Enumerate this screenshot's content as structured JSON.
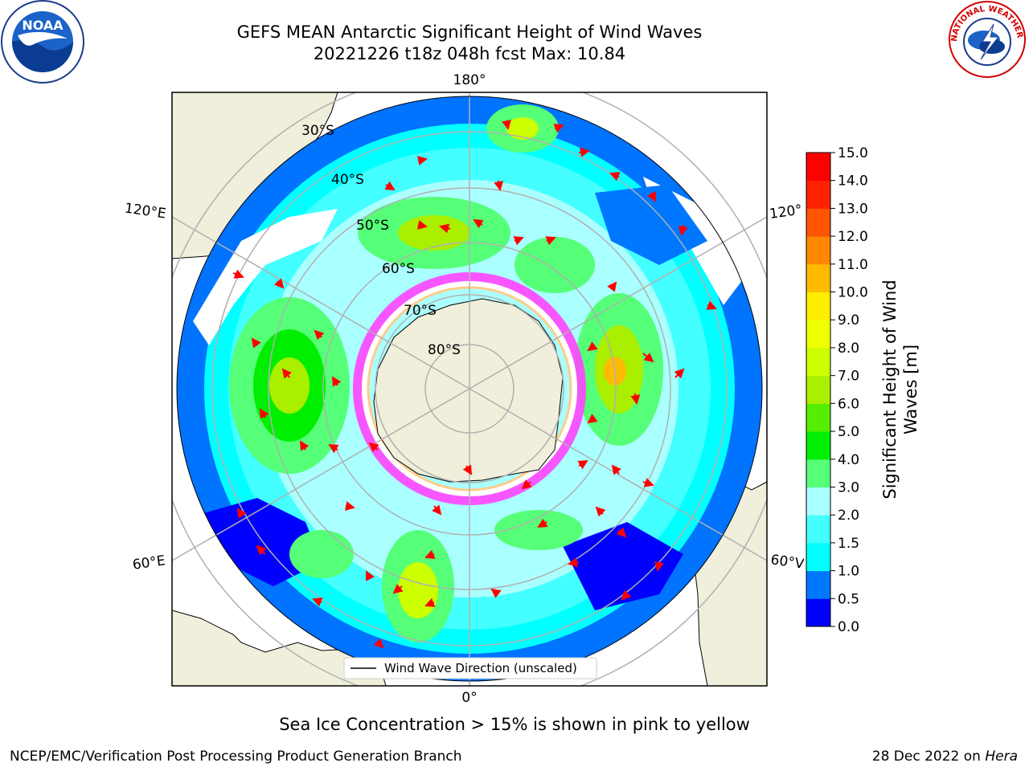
{
  "header": {
    "title_line1": "GEFS MEAN Antarctic Significant Height of Wind Waves",
    "title_line2": "20221226 t18z 048h fcst   Max: 10.84"
  },
  "logos": {
    "noaa_text": "NOAA",
    "nws_text": "NATIONAL WEATHER SERVICE"
  },
  "map": {
    "lat_labels": [
      "30°S",
      "40°S",
      "50°S",
      "60°S",
      "70°S",
      "80°S"
    ],
    "lon_labels": {
      "top": "180°",
      "bottom": "0°",
      "upper_left": "120°E",
      "upper_right": "120°",
      "lower_left": "60°E",
      "lower_right": "60°V"
    },
    "legend": "Wind Wave Direction (unscaled)",
    "land_color": "#efefdb",
    "arrow_color": "#ff0000"
  },
  "colorbar": {
    "label_line1": "Significant Height of Wind",
    "label_line2": "Waves [m]",
    "ticks": [
      "15.0",
      "14.0",
      "13.0",
      "12.0",
      "11.0",
      "10.0",
      "9.0",
      "8.0",
      "7.0",
      "6.0",
      "5.0",
      "4.0",
      "3.0",
      "2.0",
      "1.5",
      "1.0",
      "0.5",
      "0.0"
    ],
    "colors_bottom_to_top": [
      "#0000ff",
      "#0077ff",
      "#00ffff",
      "#44ffff",
      "#aaffff",
      "#55ff77",
      "#00ee00",
      "#55ee00",
      "#aaee00",
      "#ccff00",
      "#eeff00",
      "#ffee00",
      "#ffbb00",
      "#ff8800",
      "#ff5500",
      "#ff2200",
      "#ff0000"
    ]
  },
  "caption": "Sea Ice Concentration > 15% is shown in pink to yellow",
  "footer": {
    "left": "NCEP/EMC/Verification Post Processing Product Generation Branch",
    "right_prefix": "28 Dec 2022 on ",
    "right_host": "Hera"
  }
}
